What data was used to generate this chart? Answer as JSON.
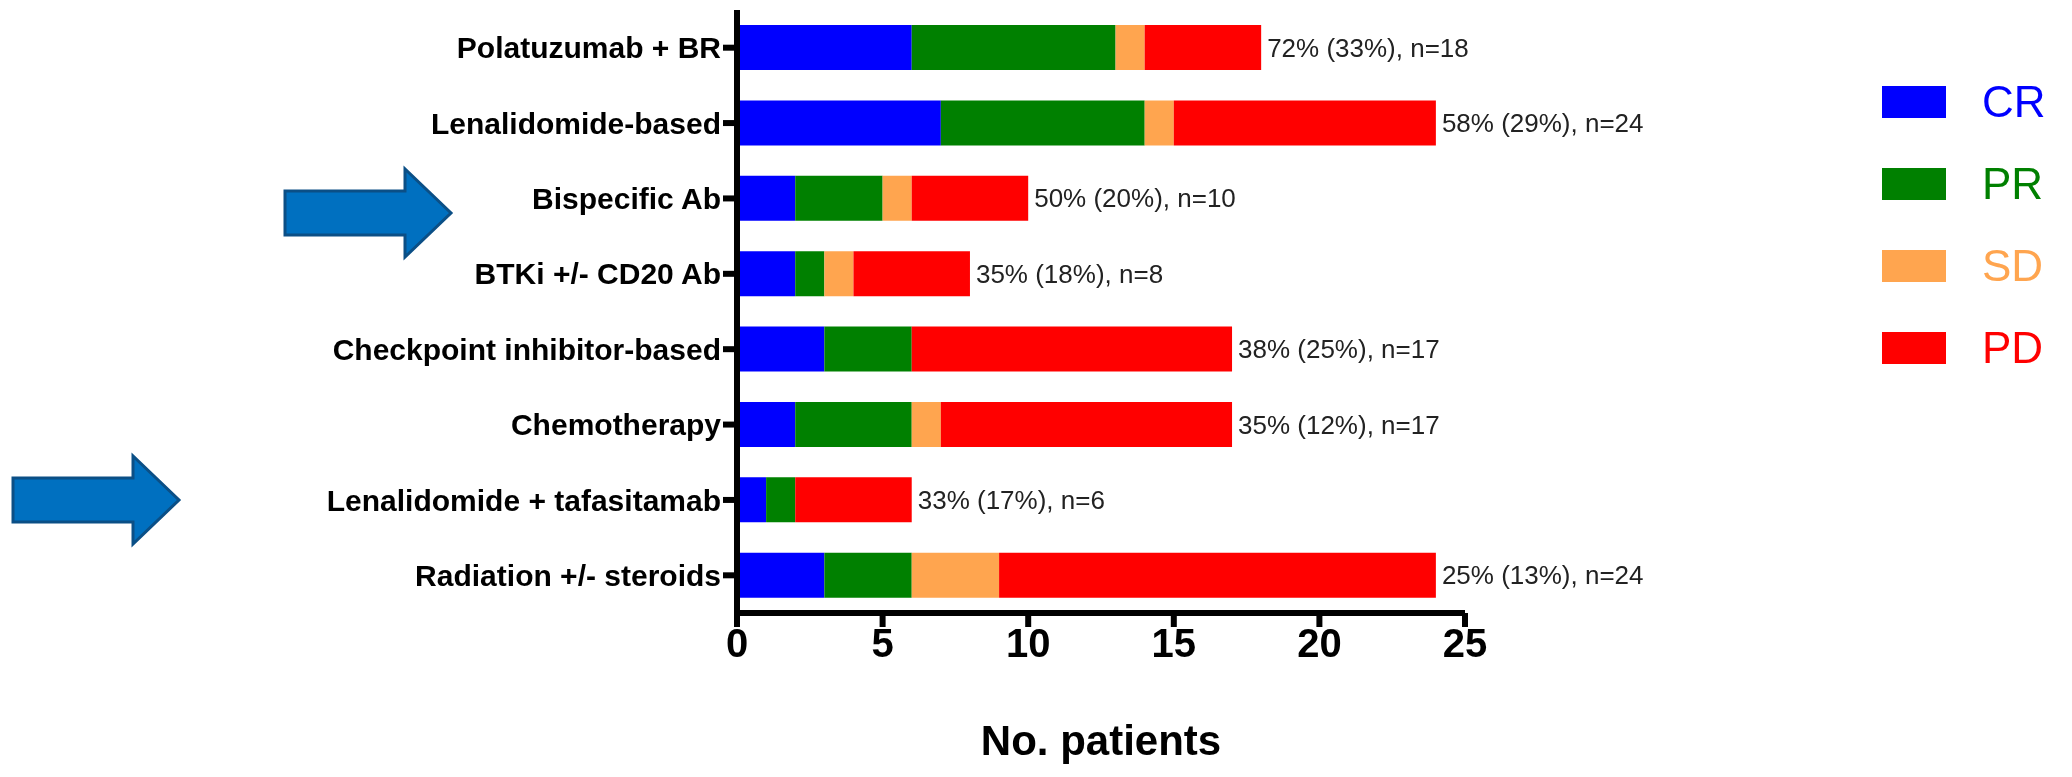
{
  "chart_data": {
    "type": "bar",
    "orientation": "horizontal",
    "stacked": true,
    "xlabel": "No. patients",
    "categories": [
      "Polatuzumab + BR",
      "Lenalidomide-based",
      "Bispecific Ab",
      "BTKi +/- CD20 Ab",
      "Checkpoint inhibitor-based",
      "Chemotherapy",
      "Lenalidomide + tafasitamab",
      "Radiation +/- steroids"
    ],
    "series": [
      {
        "name": "CR",
        "color": "#0000ff",
        "values": [
          6,
          7,
          2,
          2,
          3,
          2,
          1,
          3
        ]
      },
      {
        "name": "PR",
        "color": "#008000",
        "values": [
          7,
          7,
          3,
          1,
          3,
          4,
          1,
          3
        ]
      },
      {
        "name": "SD",
        "color": "#ffa54f",
        "values": [
          1,
          1,
          1,
          1,
          0,
          1,
          0,
          3
        ]
      },
      {
        "name": "PD",
        "color": "#ff0000",
        "values": [
          4,
          9,
          4,
          4,
          11,
          10,
          4,
          15
        ]
      }
    ],
    "totals": [
      "72% (33%), n=18",
      "58% (29%), n=24",
      "50% (20%), n=10",
      "35% (18%), n=8",
      "38% (25%), n=17",
      "35% (12%), n=17",
      "33% (17%), n=6",
      "25% (13%), n=24"
    ],
    "xlim": [
      0,
      25
    ],
    "xticks": [
      0,
      5,
      10,
      15,
      20,
      25
    ],
    "grid": false,
    "legend": "right"
  }
}
